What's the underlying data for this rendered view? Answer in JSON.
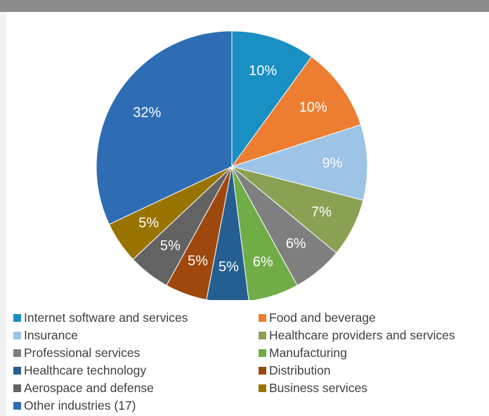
{
  "chart_data": {
    "type": "pie",
    "slices": [
      {
        "name": "Internet software and services",
        "value": 10,
        "label": "10%",
        "color": "#1a8fc4"
      },
      {
        "name": "Food and beverage",
        "value": 10,
        "label": "10%",
        "color": "#ed7d31"
      },
      {
        "name": "Insurance",
        "value": 9,
        "label": "9%",
        "color": "#9dc3e6"
      },
      {
        "name": "Healthcare providers and services",
        "value": 7,
        "label": "7%",
        "color": "#8aa153"
      },
      {
        "name": "Professional services",
        "value": 6,
        "label": "6%",
        "color": "#7f7f7f"
      },
      {
        "name": "Manufacturing",
        "value": 6,
        "label": "6%",
        "color": "#70ad47"
      },
      {
        "name": "Healthcare technology",
        "value": 5,
        "label": "5%",
        "color": "#255e91"
      },
      {
        "name": "Distribution",
        "value": 5,
        "label": "5%",
        "color": "#9e480e"
      },
      {
        "name": "Aerospace and defense",
        "value": 5,
        "label": "5%",
        "color": "#636363"
      },
      {
        "name": "Business services",
        "value": 5,
        "label": "5%",
        "color": "#997300"
      },
      {
        "name": "Other industries (17)",
        "value": 32,
        "label": "32%",
        "color": "#2e6db4"
      }
    ],
    "legend_position": "bottom",
    "legend_columns": 2
  }
}
